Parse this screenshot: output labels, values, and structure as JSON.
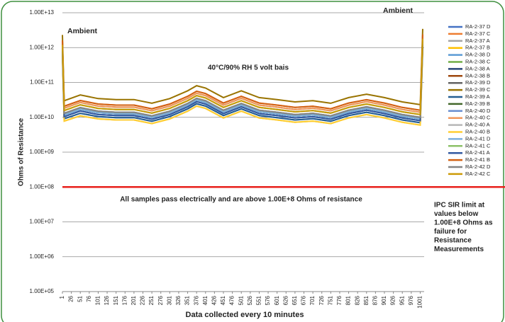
{
  "chart_data": {
    "type": "line",
    "y_label": "Ohms of Resistance",
    "x_label": "Data collected every 10 minutes",
    "log_scale_y": true,
    "grid": true,
    "legend_position": "right",
    "annotations": [
      "Ambient",
      "Ambient",
      "40°C/90% RH 5 volt bais",
      "All samples pass electrically and are above 1.00E+8 Ohms of resistance"
    ],
    "side_note": [
      "IPC SIR limit at",
      "values below",
      "1.00E+8 Ohms as",
      "failure for",
      "Resistance",
      "Measurements"
    ],
    "limit_line": {
      "value": 100000000.0,
      "color": "#e8201c"
    },
    "ylim": [
      100000.0,
      10000000000000.0
    ],
    "yticks": [
      {
        "value": 100000.0,
        "label": "1.00E+05"
      },
      {
        "value": 1000000.0,
        "label": "1.00E+06"
      },
      {
        "value": 10000000.0,
        "label": "1.00E+07"
      },
      {
        "value": 100000000.0,
        "label": "1.00E+08"
      },
      {
        "value": 1000000000.0,
        "label": "1.00E+09"
      },
      {
        "value": 10000000000.0,
        "label": "1.00E+10"
      },
      {
        "value": 100000000000.0,
        "label": "1.00E+11"
      },
      {
        "value": 1000000000000.0,
        "label": "1.00E+12"
      },
      {
        "value": 10000000000000.0,
        "label": "1.00E+13"
      }
    ],
    "xlim": [
      1,
      1012
    ],
    "xticks": [
      1,
      26,
      51,
      76,
      101,
      126,
      151,
      176,
      201,
      226,
      251,
      276,
      301,
      326,
      351,
      376,
      401,
      426,
      451,
      476,
      501,
      526,
      551,
      576,
      601,
      626,
      651,
      676,
      701,
      726,
      751,
      776,
      801,
      826,
      851,
      876,
      901,
      926,
      951,
      976,
      1001
    ],
    "x": [
      1,
      6,
      51,
      101,
      151,
      201,
      251,
      301,
      351,
      376,
      401,
      451,
      501,
      551,
      601,
      651,
      701,
      751,
      801,
      851,
      901,
      951,
      1001,
      1008
    ],
    "series": [
      {
        "name": "RA-2-37 D",
        "color": "#4472c4",
        "values": [
          700000000000.0,
          9100000000.0,
          13000000000.0,
          10500000000.0,
          9800000000.0,
          9800000000.0,
          7700000000.0,
          10500000000.0,
          17500000000.0,
          24500000000.0,
          21000000000.0,
          11200000000.0,
          17500000000.0,
          11200000000.0,
          9800000000.0,
          8400000000.0,
          9100000000.0,
          7700000000.0,
          11200000000.0,
          14000000000.0,
          11200000000.0,
          8400000000.0,
          7000000000.0,
          1050000000000.0
        ]
      },
      {
        "name": "RA-2-37 C",
        "color": "#ed7d31",
        "values": [
          1600000000000.0,
          20800000000.0,
          30400000000.0,
          24000000000.0,
          22400000000.0,
          22400000000.0,
          17600000000.0,
          24000000000.0,
          40000000000.0,
          56000000000.0,
          48000000000.0,
          25600000000.0,
          40000000000.0,
          25600000000.0,
          22400000000.0,
          19200000000.0,
          20800000000.0,
          17600000000.0,
          25600000000.0,
          32000000000.0,
          25600000000.0,
          19200000000.0,
          16000000000.0,
          2400000000000.0
        ]
      },
      {
        "name": "RA-2-37 A",
        "color": "#a5a5a5",
        "values": [
          1000000000000.0,
          13000000000.0,
          19000000000.0,
          15000000000.0,
          14000000000.0,
          14000000000.0,
          11000000000.0,
          15000000000.0,
          25000000000.0,
          35000000000.0,
          30000000000.0,
          16000000000.0,
          25000000000.0,
          16000000000.0,
          14000000000.0,
          12000000000.0,
          13000000000.0,
          11000000000.0,
          16000000000.0,
          20000000000.0,
          16000000000.0,
          12000000000.0,
          10000000000.0,
          1500000000000.0
        ]
      },
      {
        "name": "RA-2-37 B",
        "color": "#ffc000",
        "values": [
          600000000000.0,
          7800000000.0,
          11000000000.0,
          9000000000.0,
          8400000000.0,
          8400000000.0,
          6600000000.0,
          9000000000.0,
          15000000000.0,
          21000000000.0,
          18000000000.0,
          9600000000.0,
          15000000000.0,
          9600000000.0,
          8400000000.0,
          7200000000.0,
          7800000000.0,
          6600000000.0,
          9600000000.0,
          12000000000.0,
          9600000000.0,
          7200000000.0,
          6000000000.0,
          900000000000.0
        ]
      },
      {
        "name": "RA-2-38 D",
        "color": "#5b9bd5",
        "values": [
          900000000000.0,
          11700000000.0,
          17100000000.0,
          13500000000.0,
          12600000000.0,
          12600000000.0,
          9900000000.0,
          13500000000.0,
          22500000000.0,
          31500000000.0,
          27000000000.0,
          14400000000.0,
          22500000000.0,
          14400000000.0,
          12600000000.0,
          10800000000.0,
          11700000000.0,
          9900000000.0,
          14400000000.0,
          18000000000.0,
          14400000000.0,
          10800000000.0,
          9000000000.0,
          1350000000000.0
        ]
      },
      {
        "name": "RA-2-38 C",
        "color": "#70ad47",
        "values": [
          1200000000000.0,
          15600000000.0,
          22800000000.0,
          18000000000.0,
          16800000000.0,
          16800000000.0,
          13200000000.0,
          18000000000.0,
          30000000000.0,
          42000000000.0,
          36000000000.0,
          19200000000.0,
          30000000000.0,
          19200000000.0,
          16800000000.0,
          14400000000.0,
          15600000000.0,
          13200000000.0,
          19200000000.0,
          24000000000.0,
          19200000000.0,
          14400000000.0,
          12000000000.0,
          1800000000000.0
        ]
      },
      {
        "name": "RA-2-38 A",
        "color": "#264478",
        "values": [
          800000000000.0,
          10400000000.0,
          15200000000.0,
          12000000000.0,
          11200000000.0,
          11200000000.0,
          8800000000.0,
          12000000000.0,
          20000000000.0,
          28000000000.0,
          24000000000.0,
          12800000000.0,
          20000000000.0,
          12800000000.0,
          11200000000.0,
          9600000000.0,
          10400000000.0,
          8800000000.0,
          12800000000.0,
          16000000000.0,
          12800000000.0,
          9600000000.0,
          8000000000.0,
          1200000000000.0
        ]
      },
      {
        "name": "RA-2-38 B",
        "color": "#9e480e",
        "values": [
          1400000000000.0,
          18200000000.0,
          26600000000.0,
          21000000000.0,
          19600000000.0,
          19600000000.0,
          15400000000.0,
          21000000000.0,
          35000000000.0,
          49000000000.0,
          42000000000.0,
          22400000000.0,
          35000000000.0,
          22400000000.0,
          19600000000.0,
          16800000000.0,
          18200000000.0,
          15400000000.0,
          22400000000.0,
          28000000000.0,
          22400000000.0,
          16800000000.0,
          14000000000.0,
          2100000000000.0
        ]
      },
      {
        "name": "RA-2-39 D",
        "color": "#636363",
        "values": [
          1000000000000.0,
          13000000000.0,
          19000000000.0,
          15000000000.0,
          14000000000.0,
          14000000000.0,
          11000000000.0,
          15000000000.0,
          25000000000.0,
          35000000000.0,
          30000000000.0,
          16000000000.0,
          25000000000.0,
          16000000000.0,
          14000000000.0,
          12000000000.0,
          13000000000.0,
          11000000000.0,
          16000000000.0,
          20000000000.0,
          16000000000.0,
          12000000000.0,
          10000000000.0,
          1500000000000.0
        ]
      },
      {
        "name": "RA-2-39 C",
        "color": "#997300",
        "values": [
          2300000000000.0,
          29900000000.0,
          43700000000.0,
          34500000000.0,
          32200000000.0,
          32200000000.0,
          25300000000.0,
          34500000000.0,
          57500000000.0,
          80500000000.0,
          69000000000.0,
          36800000000.0,
          57500000000.0,
          36800000000.0,
          32200000000.0,
          27600000000.0,
          29900000000.0,
          25300000000.0,
          36800000000.0,
          46000000000.0,
          36800000000.0,
          27600000000.0,
          23000000000.0,
          3450000000000.0
        ]
      },
      {
        "name": "RA-2-39 A",
        "color": "#255e91",
        "values": [
          700000000000.0,
          9100000000.0,
          13000000000.0,
          10500000000.0,
          9800000000.0,
          9800000000.0,
          7700000000.0,
          10500000000.0,
          17500000000.0,
          24500000000.0,
          21000000000.0,
          11200000000.0,
          17500000000.0,
          11200000000.0,
          9800000000.0,
          8400000000.0,
          9100000000.0,
          7700000000.0,
          11200000000.0,
          14000000000.0,
          11200000000.0,
          8400000000.0,
          7000000000.0,
          1050000000000.0
        ]
      },
      {
        "name": "RA-2-39 B",
        "color": "#43682b",
        "values": [
          900000000000.0,
          11700000000.0,
          17100000000.0,
          13500000000.0,
          12600000000.0,
          12600000000.0,
          9900000000.0,
          13500000000.0,
          22500000000.0,
          31500000000.0,
          27000000000.0,
          14400000000.0,
          22500000000.0,
          14400000000.0,
          12600000000.0,
          10800000000.0,
          11700000000.0,
          9900000000.0,
          14400000000.0,
          18000000000.0,
          14400000000.0,
          10800000000.0,
          9000000000.0,
          1350000000000.0
        ]
      },
      {
        "name": "RA-2-40 D",
        "color": "#698ed0",
        "values": [
          800000000000.0,
          10400000000.0,
          15200000000.0,
          12000000000.0,
          11200000000.0,
          11200000000.0,
          8800000000.0,
          12000000000.0,
          20000000000.0,
          28000000000.0,
          24000000000.0,
          12800000000.0,
          20000000000.0,
          12800000000.0,
          11200000000.0,
          9600000000.0,
          10400000000.0,
          8800000000.0,
          12800000000.0,
          16000000000.0,
          12800000000.0,
          9600000000.0,
          8000000000.0,
          1200000000000.0
        ]
      },
      {
        "name": "RA-2-40 C",
        "color": "#f1975a",
        "values": [
          1400000000000.0,
          18200000000.0,
          26600000000.0,
          21000000000.0,
          19600000000.0,
          19600000000.0,
          15400000000.0,
          21000000000.0,
          35000000000.0,
          49000000000.0,
          42000000000.0,
          22400000000.0,
          35000000000.0,
          22400000000.0,
          19600000000.0,
          16800000000.0,
          18200000000.0,
          15400000000.0,
          22400000000.0,
          28000000000.0,
          22400000000.0,
          16800000000.0,
          14000000000.0,
          2100000000000.0
        ]
      },
      {
        "name": "RA-2-40 A",
        "color": "#b7b7b7",
        "values": [
          1000000000000.0,
          13000000000.0,
          19000000000.0,
          15000000000.0,
          14000000000.0,
          14000000000.0,
          11000000000.0,
          15000000000.0,
          25000000000.0,
          35000000000.0,
          30000000000.0,
          16000000000.0,
          25000000000.0,
          16000000000.0,
          14000000000.0,
          12000000000.0,
          13000000000.0,
          11000000000.0,
          16000000000.0,
          20000000000.0,
          16000000000.0,
          12000000000.0,
          10000000000.0,
          1500000000000.0
        ]
      },
      {
        "name": "RA-2-40 B",
        "color": "#ffcd33",
        "values": [
          600000000000.0,
          7800000000.0,
          11000000000.0,
          9000000000.0,
          8400000000.0,
          8400000000.0,
          6600000000.0,
          9000000000.0,
          15000000000.0,
          21000000000.0,
          18000000000.0,
          9600000000.0,
          15000000000.0,
          9600000000.0,
          8400000000.0,
          7200000000.0,
          7800000000.0,
          6600000000.0,
          9600000000.0,
          12000000000.0,
          9600000000.0,
          7200000000.0,
          6000000000.0,
          900000000000.0
        ]
      },
      {
        "name": "RA-2-41 D",
        "color": "#7cafdd",
        "values": [
          900000000000.0,
          11700000000.0,
          17100000000.0,
          13500000000.0,
          12600000000.0,
          12600000000.0,
          9900000000.0,
          13500000000.0,
          22500000000.0,
          31500000000.0,
          27000000000.0,
          14400000000.0,
          22500000000.0,
          14400000000.0,
          12600000000.0,
          10800000000.0,
          11700000000.0,
          9900000000.0,
          14400000000.0,
          18000000000.0,
          14400000000.0,
          10800000000.0,
          9000000000.0,
          1350000000000.0
        ]
      },
      {
        "name": "RA-2-41 C",
        "color": "#8cc168",
        "values": [
          1200000000000.0,
          15600000000.0,
          22800000000.0,
          18000000000.0,
          16800000000.0,
          16800000000.0,
          13200000000.0,
          18000000000.0,
          30000000000.0,
          42000000000.0,
          36000000000.0,
          19200000000.0,
          30000000000.0,
          19200000000.0,
          16800000000.0,
          14400000000.0,
          15600000000.0,
          13200000000.0,
          19200000000.0,
          24000000000.0,
          19200000000.0,
          14400000000.0,
          12000000000.0,
          1800000000000.0
        ]
      },
      {
        "name": "RA-2-41 A",
        "color": "#335aa1",
        "values": [
          800000000000.0,
          10400000000.0,
          15200000000.0,
          12000000000.0,
          11200000000.0,
          11200000000.0,
          8800000000.0,
          12000000000.0,
          20000000000.0,
          28000000000.0,
          24000000000.0,
          12800000000.0,
          20000000000.0,
          12800000000.0,
          11200000000.0,
          9600000000.0,
          10400000000.0,
          8800000000.0,
          12800000000.0,
          16000000000.0,
          12800000000.0,
          9600000000.0,
          8000000000.0,
          1200000000000.0
        ]
      },
      {
        "name": "RA-2-41 B",
        "color": "#d26012",
        "values": [
          1600000000000.0,
          20800000000.0,
          30400000000.0,
          24000000000.0,
          22400000000.0,
          22400000000.0,
          17600000000.0,
          24000000000.0,
          40000000000.0,
          56000000000.0,
          48000000000.0,
          25600000000.0,
          40000000000.0,
          25600000000.0,
          22400000000.0,
          19200000000.0,
          20800000000.0,
          17600000000.0,
          25600000000.0,
          32000000000.0,
          25600000000.0,
          19200000000.0,
          16000000000.0,
          2400000000000.0
        ]
      },
      {
        "name": "RA-2-42 D",
        "color": "#848484",
        "values": [
          1000000000000.0,
          13000000000.0,
          19000000000.0,
          15000000000.0,
          14000000000.0,
          14000000000.0,
          11000000000.0,
          15000000000.0,
          25000000000.0,
          35000000000.0,
          30000000000.0,
          16000000000.0,
          25000000000.0,
          16000000000.0,
          14000000000.0,
          12000000000.0,
          13000000000.0,
          11000000000.0,
          16000000000.0,
          20000000000.0,
          16000000000.0,
          12000000000.0,
          10000000000.0,
          1500000000000.0
        ]
      },
      {
        "name": "RA-2-42 C",
        "color": "#cc9a06",
        "values": [
          1200000000000.0,
          15600000000.0,
          22800000000.0,
          18000000000.0,
          16800000000.0,
          16800000000.0,
          13200000000.0,
          18000000000.0,
          30000000000.0,
          42000000000.0,
          36000000000.0,
          19200000000.0,
          30000000000.0,
          19200000000.0,
          16800000000.0,
          14400000000.0,
          15600000000.0,
          13200000000.0,
          19200000000.0,
          24000000000.0,
          19200000000.0,
          14400000000.0,
          12000000000.0,
          1800000000000.0
        ]
      }
    ]
  }
}
